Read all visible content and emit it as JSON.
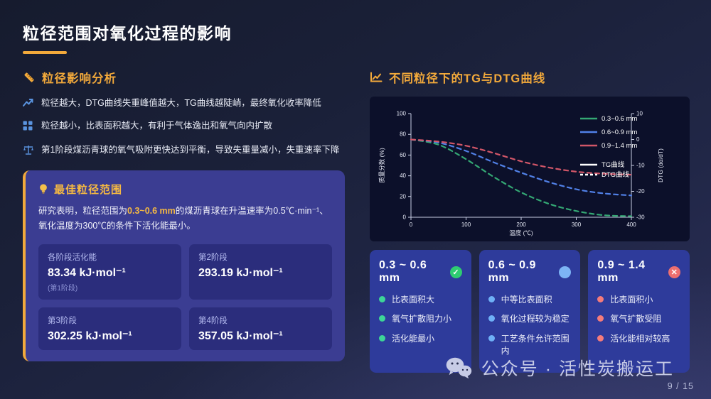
{
  "slide": {
    "title": "粒径范围对氧化过程的影响"
  },
  "left": {
    "section_title": "粒径影响分析",
    "bullets": [
      {
        "icon": "trend-up-icon",
        "text": "粒径越大，DTG曲线失重峰值越大，TG曲线越陡峭，最终氧化收率降低"
      },
      {
        "icon": "grid-icon",
        "text": "粒径越小，比表面积越大，有利于气体逸出和氧气向内扩散"
      },
      {
        "icon": "balance-icon",
        "text": "第1阶段煤沥青球的氧气吸附更快达到平衡，导致失重量减小，失重速率下降"
      }
    ],
    "best_box": {
      "title": "最佳粒径范围",
      "para_before": "研究表明，粒径范围为",
      "para_highlight": "0.3~0.6 mm",
      "para_after": "的煤沥青球在升温速率为0.5℃·min⁻¹、氧化温度为300℃的条件下活化能最小。",
      "stats": [
        {
          "label": "各阶段活化能",
          "value": "83.34 kJ·mol⁻¹",
          "note": "(第1阶段)"
        },
        {
          "label": "第2阶段",
          "value": "293.19 kJ·mol⁻¹"
        },
        {
          "label": "第3阶段",
          "value": "302.25 kJ·mol⁻¹"
        },
        {
          "label": "第4阶段",
          "value": "357.05 kJ·mol⁻¹"
        }
      ]
    }
  },
  "right": {
    "section_title": "不同粒径下的TG与DTG曲线",
    "cards": [
      {
        "range": "0.3 ~ 0.6 mm",
        "badge_glyph": "✓",
        "badge_color": "#2ecc71",
        "dot_color": "#3dd598",
        "points": [
          "比表面积大",
          "氧气扩散阻力小",
          "活化能最小"
        ]
      },
      {
        "range": "0.6 ~ 0.9 mm",
        "badge_glyph": "",
        "badge_color": "#7db4f5",
        "dot_color": "#6fb1f7",
        "points": [
          "中等比表面积",
          "氧化过程较为稳定",
          "工艺条件允许范围内"
        ]
      },
      {
        "range": "0.9 ~ 1.4 mm",
        "badge_glyph": "✕",
        "badge_color": "#ee6f6f",
        "dot_color": "#f57b7b",
        "points": [
          "比表面积小",
          "氧气扩散受阻",
          "活化能相对较高"
        ]
      }
    ]
  },
  "chart_data": {
    "type": "line",
    "x_label": "温度 (℃)",
    "y_left_label": "质量分数 (%)",
    "y_right_label": "DTG (dα/dT)",
    "x_range": [
      0,
      400
    ],
    "y_left_range": [
      0,
      100
    ],
    "y_right_range": [
      -30,
      10
    ],
    "x_ticks": [
      0,
      100,
      200,
      300,
      400
    ],
    "y_left_ticks": [
      0,
      20,
      40,
      60,
      80,
      100
    ],
    "y_right_ticks": [
      10,
      0,
      -10,
      -20,
      -30
    ],
    "grid": false,
    "legend_position": "upper right",
    "x": [
      0,
      50,
      100,
      150,
      200,
      250,
      300,
      350,
      400
    ],
    "series": [
      {
        "name": "0.3~0.6 mm",
        "color": "#34a874",
        "dashed": true,
        "values": [
          75,
          70,
          56,
          39,
          24,
          13,
          6,
          2,
          1
        ]
      },
      {
        "name": "0.6~0.9 mm",
        "color": "#5181e8",
        "dashed": true,
        "values": [
          75,
          72,
          64,
          53,
          43,
          34,
          27,
          23,
          21
        ]
      },
      {
        "name": "0.9~1.4 mm",
        "color": "#d25668",
        "dashed": true,
        "values": [
          75,
          73,
          69,
          62,
          54,
          48,
          44,
          42,
          41
        ]
      }
    ],
    "legend": [
      {
        "label": "0.3~0.6 mm",
        "color": "#34a874",
        "style": "solid"
      },
      {
        "label": "0.6~0.9 mm",
        "color": "#5181e8",
        "style": "solid"
      },
      {
        "label": "0.9~1.4 mm",
        "color": "#d25668",
        "style": "solid"
      },
      {
        "label": "TG曲线",
        "color": "#ffffff",
        "style": "solid"
      },
      {
        "label": "DTG曲线",
        "color": "#ffffff",
        "style": "dashed"
      }
    ]
  },
  "footer": {
    "account": "公众号 · 活性炭搬运工",
    "page": "9 / 15"
  },
  "colors": {
    "accent_orange": "#f2a93b",
    "highlight_yellow": "#f5b942",
    "bullet_icon_blue": "#5a94e0",
    "best_box_bg": "#3b3d92",
    "stat_box_bg": "#2b2d7c",
    "card_bg": "#2e3b9b",
    "chart_panel_bg": "#0c102a"
  }
}
